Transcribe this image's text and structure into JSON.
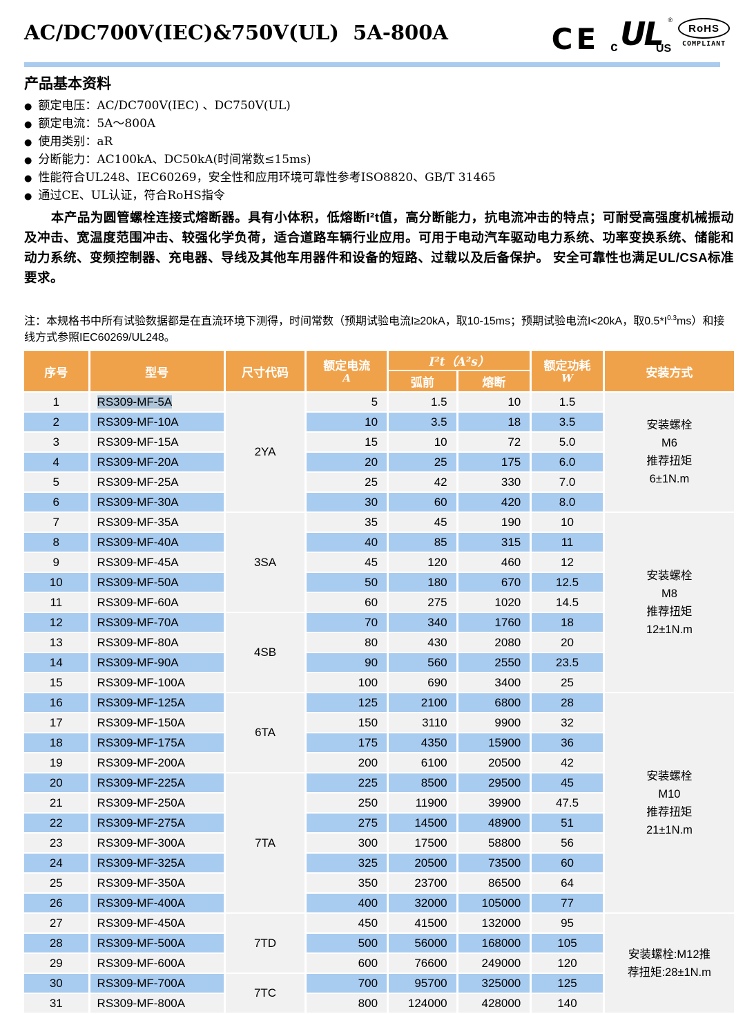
{
  "page": {
    "title": "AC/DC700V(IEC)&750V(UL)  5A-800A",
    "certifications": {
      "ce": "CE",
      "ul_c": "c",
      "ul": "UL",
      "ul_reg": "®",
      "ul_us": "US",
      "rohs": "RoHS",
      "rohs_compliant": "COMPLIANT"
    }
  },
  "info": {
    "heading": "产品基本资料",
    "bullet_char": "●",
    "bullets": [
      "额定电压：AC/DC700V(IEC) 、DC750V(UL)",
      "额定电流：5A～800A",
      "使用类别：aR",
      "分断能力：AC100kA、DC50kA(时间常数≤15ms)",
      "性能符合UL248、IEC60269，安全性和应用环境可靠性参考ISO8820、GB/T 31465",
      "通过CE、UL认证，符合RoHS指令"
    ],
    "description": "本产品为圆管螺栓连接式熔断器。具有小体积，低熔断I²t值，高分断能力，抗电流冲击的特点；可耐受高强度机械振动及冲击、宽温度范围冲击、较强化学负荷，适合道路车辆行业应用。可用于电动汽车驱动电力系统、功率变换系统、储能和动力系统、变频控制器、充电器、导线及其他车用器件和设备的短路、过载以及后备保护。 安全可靠性也满足UL/CSA标准要求。",
    "note": {
      "pre": "注：本规格书中所有试验数据都是在直流环境下测得，时间常数（预期试验电流I≥20kA，取10-15ms；预期试验电流I<20kA，取0.5*I",
      "sup": "0.3",
      "post": "ms）和接线方式参照IEC60269/UL248。"
    }
  },
  "table": {
    "colors": {
      "header_bg": "#F0A24A",
      "stripe_blue": "#A8CBF0",
      "stripe_gray": "#F1F1F1",
      "selection_highlight": "#AEC4D8",
      "divider_blue": "#A9CBEE"
    },
    "headers": {
      "no": "序号",
      "model": "型号",
      "size_code": "尺寸代码",
      "rated_current": "额定电流",
      "rated_current_unit": "A",
      "i2t": "I²t（A²s）",
      "prearc": "弧前",
      "melt": "熔断",
      "rated_power": "额定功耗",
      "rated_power_unit": "W",
      "mounting": "安装方式"
    },
    "rows": [
      {
        "no": "1",
        "model": "RS309-MF-5A",
        "current": "5",
        "prearc": "1.5",
        "melt": "10",
        "power": "1.5",
        "highlight": true
      },
      {
        "no": "2",
        "model": "RS309-MF-10A",
        "current": "10",
        "prearc": "3.5",
        "melt": "18",
        "power": "3.5"
      },
      {
        "no": "3",
        "model": "RS309-MF-15A",
        "current": "15",
        "prearc": "10",
        "melt": "72",
        "power": "5.0"
      },
      {
        "no": "4",
        "model": "RS309-MF-20A",
        "current": "20",
        "prearc": "25",
        "melt": "175",
        "power": "6.0"
      },
      {
        "no": "5",
        "model": "RS309-MF-25A",
        "current": "25",
        "prearc": "42",
        "melt": "330",
        "power": "7.0"
      },
      {
        "no": "6",
        "model": "RS309-MF-30A",
        "current": "30",
        "prearc": "60",
        "melt": "420",
        "power": "8.0"
      },
      {
        "no": "7",
        "model": "RS309-MF-35A",
        "current": "35",
        "prearc": "45",
        "melt": "190",
        "power": "10"
      },
      {
        "no": "8",
        "model": "RS309-MF-40A",
        "current": "40",
        "prearc": "85",
        "melt": "315",
        "power": "11"
      },
      {
        "no": "9",
        "model": "RS309-MF-45A",
        "current": "45",
        "prearc": "120",
        "melt": "460",
        "power": "12"
      },
      {
        "no": "10",
        "model": "RS309-MF-50A",
        "current": "50",
        "prearc": "180",
        "melt": "670",
        "power": "12.5"
      },
      {
        "no": "11",
        "model": "RS309-MF-60A",
        "current": "60",
        "prearc": "275",
        "melt": "1020",
        "power": "14.5"
      },
      {
        "no": "12",
        "model": "RS309-MF-70A",
        "current": "70",
        "prearc": "340",
        "melt": "1760",
        "power": "18"
      },
      {
        "no": "13",
        "model": "RS309-MF-80A",
        "current": "80",
        "prearc": "430",
        "melt": "2080",
        "power": "20"
      },
      {
        "no": "14",
        "model": "RS309-MF-90A",
        "current": "90",
        "prearc": "560",
        "melt": "2550",
        "power": "23.5"
      },
      {
        "no": "15",
        "model": "RS309-MF-100A",
        "current": "100",
        "prearc": "690",
        "melt": "3400",
        "power": "25"
      },
      {
        "no": "16",
        "model": "RS309-MF-125A",
        "current": "125",
        "prearc": "2100",
        "melt": "6800",
        "power": "28"
      },
      {
        "no": "17",
        "model": "RS309-MF-150A",
        "current": "150",
        "prearc": "3110",
        "melt": "9900",
        "power": "32"
      },
      {
        "no": "18",
        "model": "RS309-MF-175A",
        "current": "175",
        "prearc": "4350",
        "melt": "15900",
        "power": "36"
      },
      {
        "no": "19",
        "model": "RS309-MF-200A",
        "current": "200",
        "prearc": "6100",
        "melt": "20500",
        "power": "42"
      },
      {
        "no": "20",
        "model": "RS309-MF-225A",
        "current": "225",
        "prearc": "8500",
        "melt": "29500",
        "power": "45"
      },
      {
        "no": "21",
        "model": "RS309-MF-250A",
        "current": "250",
        "prearc": "11900",
        "melt": "39900",
        "power": "47.5"
      },
      {
        "no": "22",
        "model": "RS309-MF-275A",
        "current": "275",
        "prearc": "14500",
        "melt": "48900",
        "power": "51"
      },
      {
        "no": "23",
        "model": "RS309-MF-300A",
        "current": "300",
        "prearc": "17500",
        "melt": "58800",
        "power": "56"
      },
      {
        "no": "24",
        "model": "RS309-MF-325A",
        "current": "325",
        "prearc": "20500",
        "melt": "73500",
        "power": "60"
      },
      {
        "no": "25",
        "model": "RS309-MF-350A",
        "current": "350",
        "prearc": "23700",
        "melt": "86500",
        "power": "64"
      },
      {
        "no": "26",
        "model": "RS309-MF-400A",
        "current": "400",
        "prearc": "32000",
        "melt": "105000",
        "power": "77"
      },
      {
        "no": "27",
        "model": "RS309-MF-450A",
        "current": "450",
        "prearc": "41500",
        "melt": "132000",
        "power": "95"
      },
      {
        "no": "28",
        "model": "RS309-MF-500A",
        "current": "500",
        "prearc": "56000",
        "melt": "168000",
        "power": "105"
      },
      {
        "no": "29",
        "model": "RS309-MF-600A",
        "current": "600",
        "prearc": "76600",
        "melt": "249000",
        "power": "120"
      },
      {
        "no": "30",
        "model": "RS309-MF-700A",
        "current": "700",
        "prearc": "95700",
        "melt": "325000",
        "power": "125"
      },
      {
        "no": "31",
        "model": "RS309-MF-800A",
        "current": "800",
        "prearc": "124000",
        "melt": "428000",
        "power": "140"
      }
    ],
    "size_groups": [
      {
        "label": "2YA",
        "start": "1",
        "span": 6
      },
      {
        "label": "3SA",
        "start": "7",
        "span": 5
      },
      {
        "label": "4SB",
        "start": "12",
        "span": 4
      },
      {
        "label": "6TA",
        "start": "16",
        "span": 4
      },
      {
        "label": "7TA",
        "start": "20",
        "span": 7
      },
      {
        "label": "7TD",
        "start": "27",
        "span": 3
      },
      {
        "label": "7TC",
        "start": "30",
        "span": 2
      }
    ],
    "mounting_groups": [
      {
        "start": "1",
        "span": 6,
        "lines": [
          "安装螺栓",
          "M6",
          "推荐扭矩",
          "6±1N.m"
        ]
      },
      {
        "start": "7",
        "span": 9,
        "lines": [
          "安装螺栓",
          "M8",
          "推荐扭矩",
          "12±1N.m"
        ]
      },
      {
        "start": "16",
        "span": 11,
        "lines": [
          "安装螺栓",
          "M10",
          "推荐扭矩",
          "21±1N.m"
        ]
      },
      {
        "start": "27",
        "span": 5,
        "lines": [
          "安装螺栓:M12推",
          "荐扭矩:28±1N.m"
        ]
      }
    ]
  }
}
